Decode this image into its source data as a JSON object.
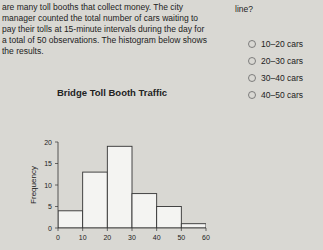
{
  "chart_data": {
    "type": "histogram",
    "title": "Bridge Toll Booth Traffic",
    "y_label": "Frequency",
    "bins": [
      0,
      10,
      20,
      30,
      40,
      50,
      60
    ],
    "values": [
      4,
      13,
      19,
      8,
      5,
      1
    ],
    "color": "#f4f4f2",
    "xlim": [
      0,
      60
    ],
    "xticks": [
      0,
      10,
      20,
      30,
      40,
      50,
      60
    ],
    "ylim": [
      0,
      20
    ],
    "yticks": [
      0,
      5,
      10,
      15,
      20
    ],
    "grid": false
  },
  "page": {
    "paragraph": [
      "are many toll booths that collect money. The city",
      "manager counted the total number of cars waiting to",
      "pay their tolls at 15-minute intervals during the day for",
      "a total of 50 observations. The histogram below shows",
      "the results."
    ],
    "question": "line?",
    "options": [
      "10–20 cars",
      "20–30 cars",
      "30–40 cars",
      "40–50 cars"
    ]
  }
}
